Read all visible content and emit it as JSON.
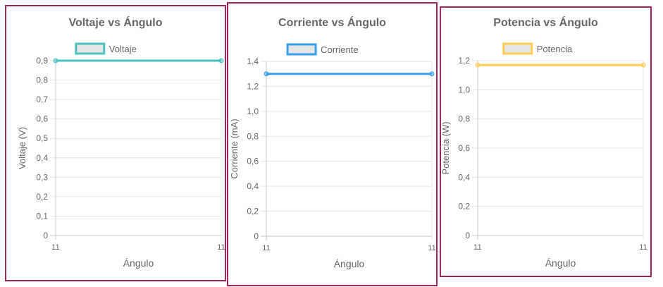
{
  "chart_data": [
    {
      "type": "line",
      "title": "Voltaje vs Ángulo",
      "xlabel": "Ángulo",
      "ylabel": "Voltaje (V)",
      "categories": [
        "11",
        "11"
      ],
      "y_ticks": [
        "0",
        "0,1",
        "0,2",
        "0,3",
        "0,4",
        "0,5",
        "0,6",
        "0,7",
        "0,8",
        "0,9"
      ],
      "ylim": [
        0,
        0.9
      ],
      "grid": true,
      "legend_position": "top-center",
      "series": [
        {
          "name": "Voltaje",
          "values": [
            0.9,
            0.9
          ],
          "color": "#4bc0c0"
        }
      ]
    },
    {
      "type": "line",
      "title": "Corriente vs Ángulo",
      "xlabel": "Ángulo",
      "ylabel": "Corriente (mA)",
      "categories": [
        "11",
        "11"
      ],
      "y_ticks": [
        "0",
        "0,2",
        "0,4",
        "0,6",
        "0,8",
        "1,0",
        "1,2",
        "1,4"
      ],
      "ylim": [
        0,
        1.4
      ],
      "grid": true,
      "legend_position": "top-center",
      "series": [
        {
          "name": "Corriente",
          "values": [
            1.3,
            1.3
          ],
          "color": "#36a2eb"
        }
      ]
    },
    {
      "type": "line",
      "title": "Potencia vs Ángulo",
      "xlabel": "Ángulo",
      "ylabel": "Potencia (W)",
      "categories": [
        "11",
        "11"
      ],
      "y_ticks": [
        "0",
        "0,2",
        "0,4",
        "0,6",
        "0,8",
        "1,0",
        "1,2"
      ],
      "ylim": [
        0,
        1.2
      ],
      "grid": true,
      "legend_position": "top-center",
      "series": [
        {
          "name": "Potencia",
          "values": [
            1.17,
            1.17
          ],
          "color": "#ffcd56"
        }
      ]
    }
  ]
}
